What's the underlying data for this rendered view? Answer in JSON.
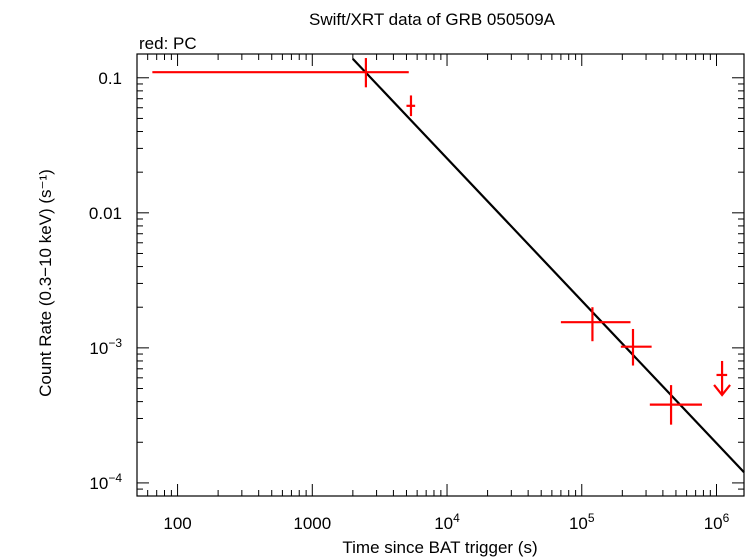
{
  "chart_data": {
    "type": "scatter",
    "title": "Swift/XRT data of GRB 050509A",
    "subtitle": "red: PC",
    "xlabel": "Time since BAT trigger (s)",
    "ylabel": "Count Rate (0.3−10 keV) (s⁻¹)",
    "xscale": "log",
    "yscale": "log",
    "xlim": [
      50,
      1600000
    ],
    "ylim": [
      8e-05,
      0.15
    ],
    "x_ticks": [
      {
        "value": 100,
        "label": "100"
      },
      {
        "value": 1000,
        "label": "1000"
      },
      {
        "value": 10000,
        "label": "10",
        "exp": "4"
      },
      {
        "value": 100000,
        "label": "10",
        "exp": "5"
      },
      {
        "value": 1000000,
        "label": "10",
        "exp": "6"
      }
    ],
    "y_ticks": [
      {
        "value": 0.0001,
        "label": "10",
        "exp": "−4"
      },
      {
        "value": 0.001,
        "label": "10",
        "exp": "−3"
      },
      {
        "value": 0.01,
        "label": "0.01"
      },
      {
        "value": 0.1,
        "label": "0.1"
      }
    ],
    "series": [
      {
        "name": "PC",
        "color": "#ff0000",
        "points": [
          {
            "x": 2500,
            "y": 0.11,
            "xlo": 65,
            "xhi": 5200,
            "ylo": 0.085,
            "yhi": 0.14
          },
          {
            "x": 5400,
            "y": 0.062,
            "xlo": 5000,
            "xhi": 5800,
            "ylo": 0.052,
            "yhi": 0.074
          },
          {
            "x": 120000,
            "y": 0.00155,
            "xlo": 70000,
            "xhi": 230000,
            "ylo": 0.00112,
            "yhi": 0.002
          },
          {
            "x": 240000,
            "y": 0.00102,
            "xlo": 195000,
            "xhi": 330000,
            "ylo": 0.00074,
            "yhi": 0.00138
          },
          {
            "x": 460000,
            "y": 0.00038,
            "xlo": 320000,
            "xhi": 780000,
            "ylo": 0.00027,
            "yhi": 0.00053
          }
        ],
        "upper_limits": [
          {
            "x": 1100000,
            "y": 0.00063,
            "xlo": 1000000,
            "xhi": 1200000
          }
        ]
      }
    ],
    "model": {
      "type": "power-law",
      "color": "#000000",
      "x_start": 2000,
      "x_end": 1600000,
      "y_at_start": 0.138,
      "y_at_end": 0.00012
    }
  }
}
